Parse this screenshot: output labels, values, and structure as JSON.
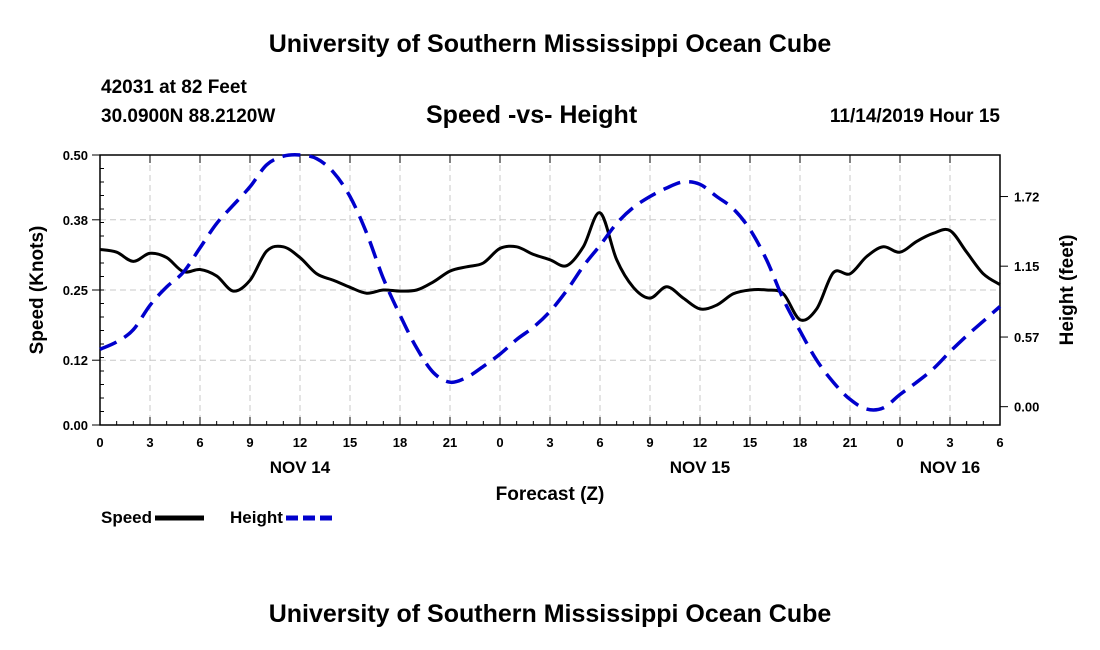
{
  "header": {
    "title": "University of Southern Mississippi Ocean Cube",
    "station": "42031 at 82 Feet",
    "coords": "30.0900N 88.2120W",
    "chart_title": "Speed -vs- Height",
    "timestamp": "11/14/2019 Hour 15"
  },
  "footer": {
    "title": "University of Southern Mississippi Ocean Cube"
  },
  "legend": {
    "speed_label": "Speed",
    "height_label": "Height",
    "speed_color": "#000000",
    "height_color": "#0000cc"
  },
  "chart_data": {
    "type": "line",
    "title": "Speed -vs- Height",
    "xlabel": "Forecast (Z)",
    "ylabel_left": "Speed (Knots)",
    "ylabel_right": "Height (feet)",
    "x_range_hours": [
      0,
      54
    ],
    "ylim_left": [
      0,
      0.5
    ],
    "ylim_right": [
      -0.15,
      2.06
    ],
    "left_ticks": [
      "0.00",
      "0.12",
      "0.25",
      "0.38",
      "0.50"
    ],
    "right_ticks": [
      "0.00",
      "0.57",
      "1.15",
      "1.72"
    ],
    "x_tick_hours": [
      0,
      3,
      6,
      9,
      12,
      15,
      18,
      21,
      24,
      27,
      30,
      33,
      36,
      39,
      42,
      45,
      48,
      51,
      54
    ],
    "x_tick_labels": [
      "0",
      "3",
      "6",
      "9",
      "12",
      "15",
      "18",
      "21",
      "0",
      "3",
      "6",
      "9",
      "12",
      "15",
      "18",
      "21",
      "0",
      "3",
      "6"
    ],
    "date_labels": [
      {
        "hour": 12,
        "label": "NOV 14"
      },
      {
        "hour": 36,
        "label": "NOV 15"
      },
      {
        "hour": 51,
        "label": "NOV 16"
      }
    ],
    "grid": true,
    "legend_position": "bottom-left",
    "series": [
      {
        "name": "Speed",
        "axis": "left",
        "style": "solid",
        "color": "#000000",
        "x": [
          0,
          1,
          2,
          3,
          4,
          5,
          6,
          7,
          8,
          9,
          10,
          11,
          12,
          13,
          14,
          15,
          16,
          17,
          18,
          19,
          20,
          21,
          22,
          23,
          24,
          25,
          26,
          27,
          28,
          29,
          30,
          31,
          32,
          33,
          34,
          35,
          36,
          37,
          38,
          39,
          40,
          41,
          42,
          43,
          44,
          45,
          46,
          47,
          48,
          49,
          50,
          51,
          52,
          53,
          54
        ],
        "values": [
          0.325,
          0.32,
          0.303,
          0.318,
          0.31,
          0.284,
          0.288,
          0.276,
          0.248,
          0.268,
          0.322,
          0.33,
          0.31,
          0.28,
          0.268,
          0.255,
          0.244,
          0.25,
          0.248,
          0.25,
          0.265,
          0.285,
          0.293,
          0.3,
          0.327,
          0.33,
          0.316,
          0.306,
          0.295,
          0.33,
          0.393,
          0.306,
          0.255,
          0.235,
          0.256,
          0.235,
          0.215,
          0.222,
          0.243,
          0.25,
          0.25,
          0.243,
          0.195,
          0.215,
          0.282,
          0.28,
          0.312,
          0.33,
          0.32,
          0.34,
          0.355,
          0.36,
          0.32,
          0.28,
          0.26
        ]
      },
      {
        "name": "Height",
        "axis": "right",
        "style": "dashed",
        "color": "#0000cc",
        "x": [
          0,
          1,
          2,
          3,
          4,
          5,
          6,
          7,
          8,
          9,
          10,
          11,
          12,
          13,
          14,
          15,
          16,
          17,
          18,
          19,
          20,
          21,
          22,
          23,
          24,
          25,
          26,
          27,
          28,
          29,
          30,
          31,
          32,
          33,
          34,
          35,
          36,
          37,
          38,
          39,
          40,
          41,
          42,
          43,
          44,
          45,
          46,
          47,
          48,
          49,
          50,
          51,
          52,
          53,
          54
        ],
        "values": [
          0.47,
          0.53,
          0.63,
          0.83,
          0.98,
          1.1,
          1.3,
          1.5,
          1.65,
          1.8,
          1.98,
          2.05,
          2.06,
          2.03,
          1.92,
          1.72,
          1.42,
          1.05,
          0.75,
          0.48,
          0.28,
          0.2,
          0.24,
          0.33,
          0.43,
          0.55,
          0.65,
          0.78,
          0.95,
          1.15,
          1.32,
          1.5,
          1.63,
          1.72,
          1.79,
          1.84,
          1.82,
          1.72,
          1.62,
          1.45,
          1.2,
          0.88,
          0.62,
          0.38,
          0.2,
          0.06,
          -0.02,
          -0.01,
          0.1,
          0.2,
          0.31,
          0.45,
          0.58,
          0.7,
          0.82
        ]
      }
    ]
  }
}
